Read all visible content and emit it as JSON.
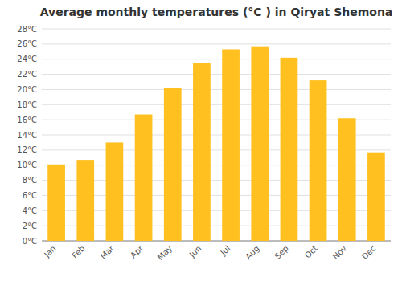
{
  "chart_data": {
    "type": "bar",
    "title": "Average monthly temperatures (°C ) in Qiryat Shemona",
    "categories": [
      "Jan",
      "Feb",
      "Mar",
      "Apr",
      "May",
      "Jun",
      "Jul",
      "Aug",
      "Sep",
      "Oct",
      "Nov",
      "Dec"
    ],
    "values": [
      10.1,
      10.7,
      13.0,
      16.7,
      20.2,
      23.5,
      25.3,
      25.7,
      24.2,
      21.2,
      16.2,
      11.7
    ],
    "color": "#FFC020",
    "ylim": [
      0,
      28
    ],
    "yticks": [
      {
        "value": 0,
        "label": "0°C"
      },
      {
        "value": 2,
        "label": "2°C"
      },
      {
        "value": 4,
        "label": "4°C"
      },
      {
        "value": 6,
        "label": "6°C"
      },
      {
        "value": 8,
        "label": "8°C"
      },
      {
        "value": 10,
        "label": "10°C"
      },
      {
        "value": 12,
        "label": "12°C"
      },
      {
        "value": 14,
        "label": "14°C"
      },
      {
        "value": 16,
        "label": "16°C"
      },
      {
        "value": 18,
        "label": "18°C"
      },
      {
        "value": 20,
        "label": "20°C"
      },
      {
        "value": 22,
        "label": "22°C"
      },
      {
        "value": 24,
        "label": "24°C"
      },
      {
        "value": 26,
        "label": "26°C"
      },
      {
        "value": 28,
        "label": "28°C"
      }
    ],
    "grid": true
  }
}
